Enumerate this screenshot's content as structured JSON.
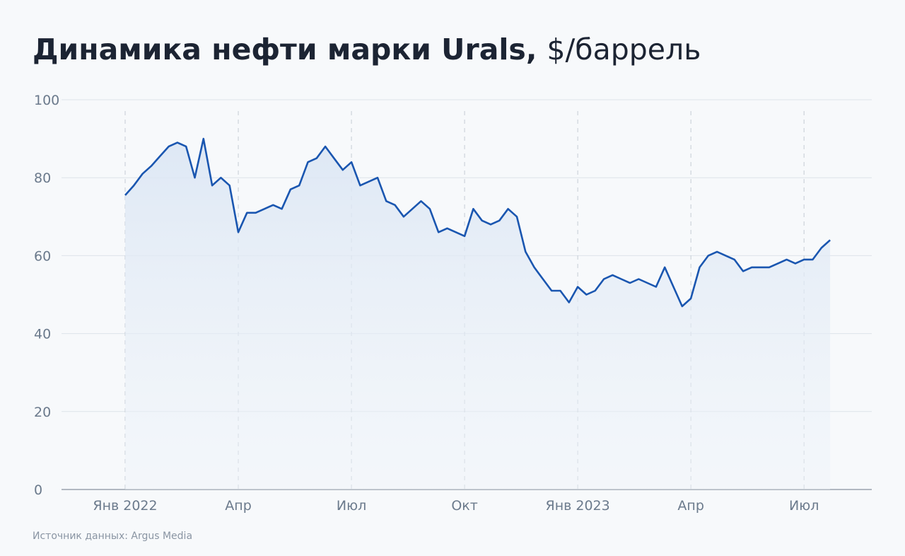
{
  "chart_data": {
    "type": "line",
    "title": "Динамика нефти марки Urals,",
    "subtitle": "$/баррель",
    "source": "Источник данных: Argus Media",
    "categories": [
      "Янв 2022",
      null,
      null,
      null,
      null,
      null,
      null,
      null,
      null,
      null,
      null,
      null,
      null,
      "Апр",
      null,
      null,
      null,
      null,
      null,
      null,
      null,
      null,
      null,
      null,
      null,
      null,
      "Июл",
      null,
      null,
      null,
      null,
      null,
      null,
      null,
      null,
      null,
      null,
      null,
      null,
      "Окт",
      null,
      null,
      null,
      null,
      null,
      null,
      null,
      null,
      null,
      null,
      null,
      null,
      "Янв 2023",
      null,
      null,
      null,
      null,
      null,
      null,
      null,
      null,
      null,
      null,
      null,
      null,
      "Апр",
      null,
      null,
      null,
      null,
      null,
      null,
      null,
      null,
      null,
      null,
      null,
      null,
      "Июл",
      null,
      null,
      null
    ],
    "series": [
      {
        "name": "Urals",
        "color": "#1a56b0",
        "values": [
          75.5,
          78,
          81,
          83,
          85.5,
          88,
          89,
          88,
          80,
          90,
          78,
          80,
          78,
          66,
          71,
          71,
          72,
          73,
          72,
          77,
          78,
          84,
          85,
          88,
          85,
          82,
          84,
          78,
          79,
          80,
          74,
          73,
          70,
          72,
          74,
          72,
          66,
          67,
          66,
          65,
          72,
          69,
          68,
          69,
          72,
          70,
          61,
          57,
          54,
          51,
          51,
          48,
          52,
          50,
          51,
          54,
          55,
          54,
          53,
          54,
          53,
          52,
          57,
          52,
          47,
          49,
          57,
          60,
          61,
          60,
          59,
          56,
          57,
          57,
          57,
          58,
          59,
          58,
          59,
          59,
          62,
          64
        ]
      }
    ],
    "ylim": [
      0,
      100
    ],
    "yticks": [
      0,
      20,
      40,
      60,
      80,
      100
    ],
    "grid": true
  }
}
